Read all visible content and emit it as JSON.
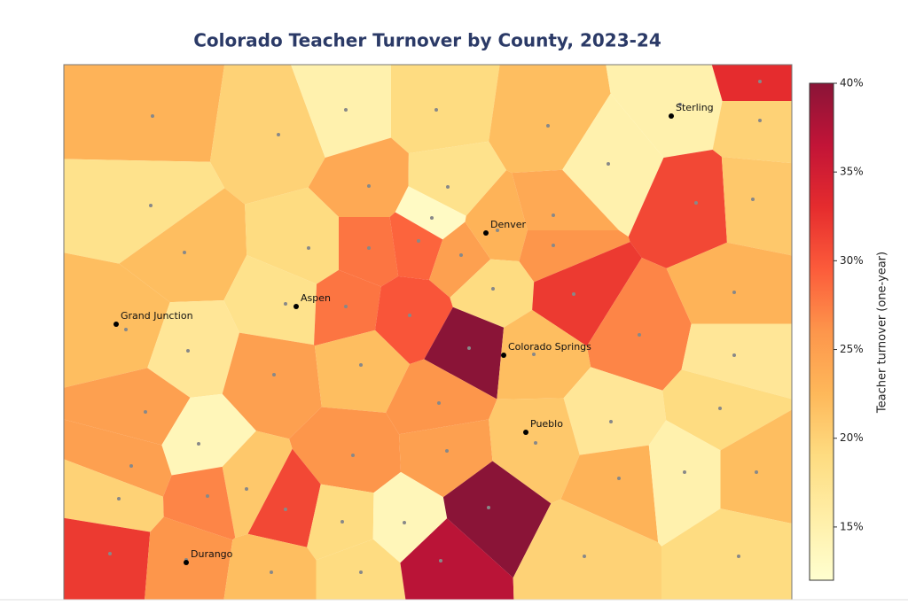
{
  "chart_data": {
    "type": "voronoi",
    "title": "Colorado Teacher Turnover by County, 2023-24",
    "colorbar_label": "Teacher turnover (one-year)",
    "colormap": "YlOrRd",
    "clim": [
      12,
      40
    ],
    "cticks": [
      {
        "value": 15,
        "label": "15%"
      },
      {
        "value": 20,
        "label": "20%"
      },
      {
        "value": 25,
        "label": "25%"
      },
      {
        "value": 30,
        "label": "30%"
      },
      {
        "value": 35,
        "label": "35%"
      },
      {
        "value": 40,
        "label": "40%"
      }
    ],
    "values": [
      23,
      20,
      15,
      19,
      22,
      15,
      33,
      20,
      18,
      24,
      18,
      13,
      15,
      31,
      21,
      22,
      19,
      28,
      29,
      25,
      23,
      24,
      26,
      22,
      18,
      28,
      30,
      19,
      32,
      27,
      23,
      17,
      25,
      22,
      40,
      22,
      17,
      25,
      26,
      17,
      19,
      14,
      26,
      25,
      21,
      25,
      21,
      31,
      19,
      14,
      40,
      23,
      15,
      22,
      20,
      27,
      32,
      26,
      22,
      19,
      37,
      20,
      19
    ],
    "cities": [
      "Sterling",
      "Denver",
      "Aspen",
      "Grand Junction",
      "Colorado Springs",
      "Pueblo",
      "Durango"
    ]
  }
}
